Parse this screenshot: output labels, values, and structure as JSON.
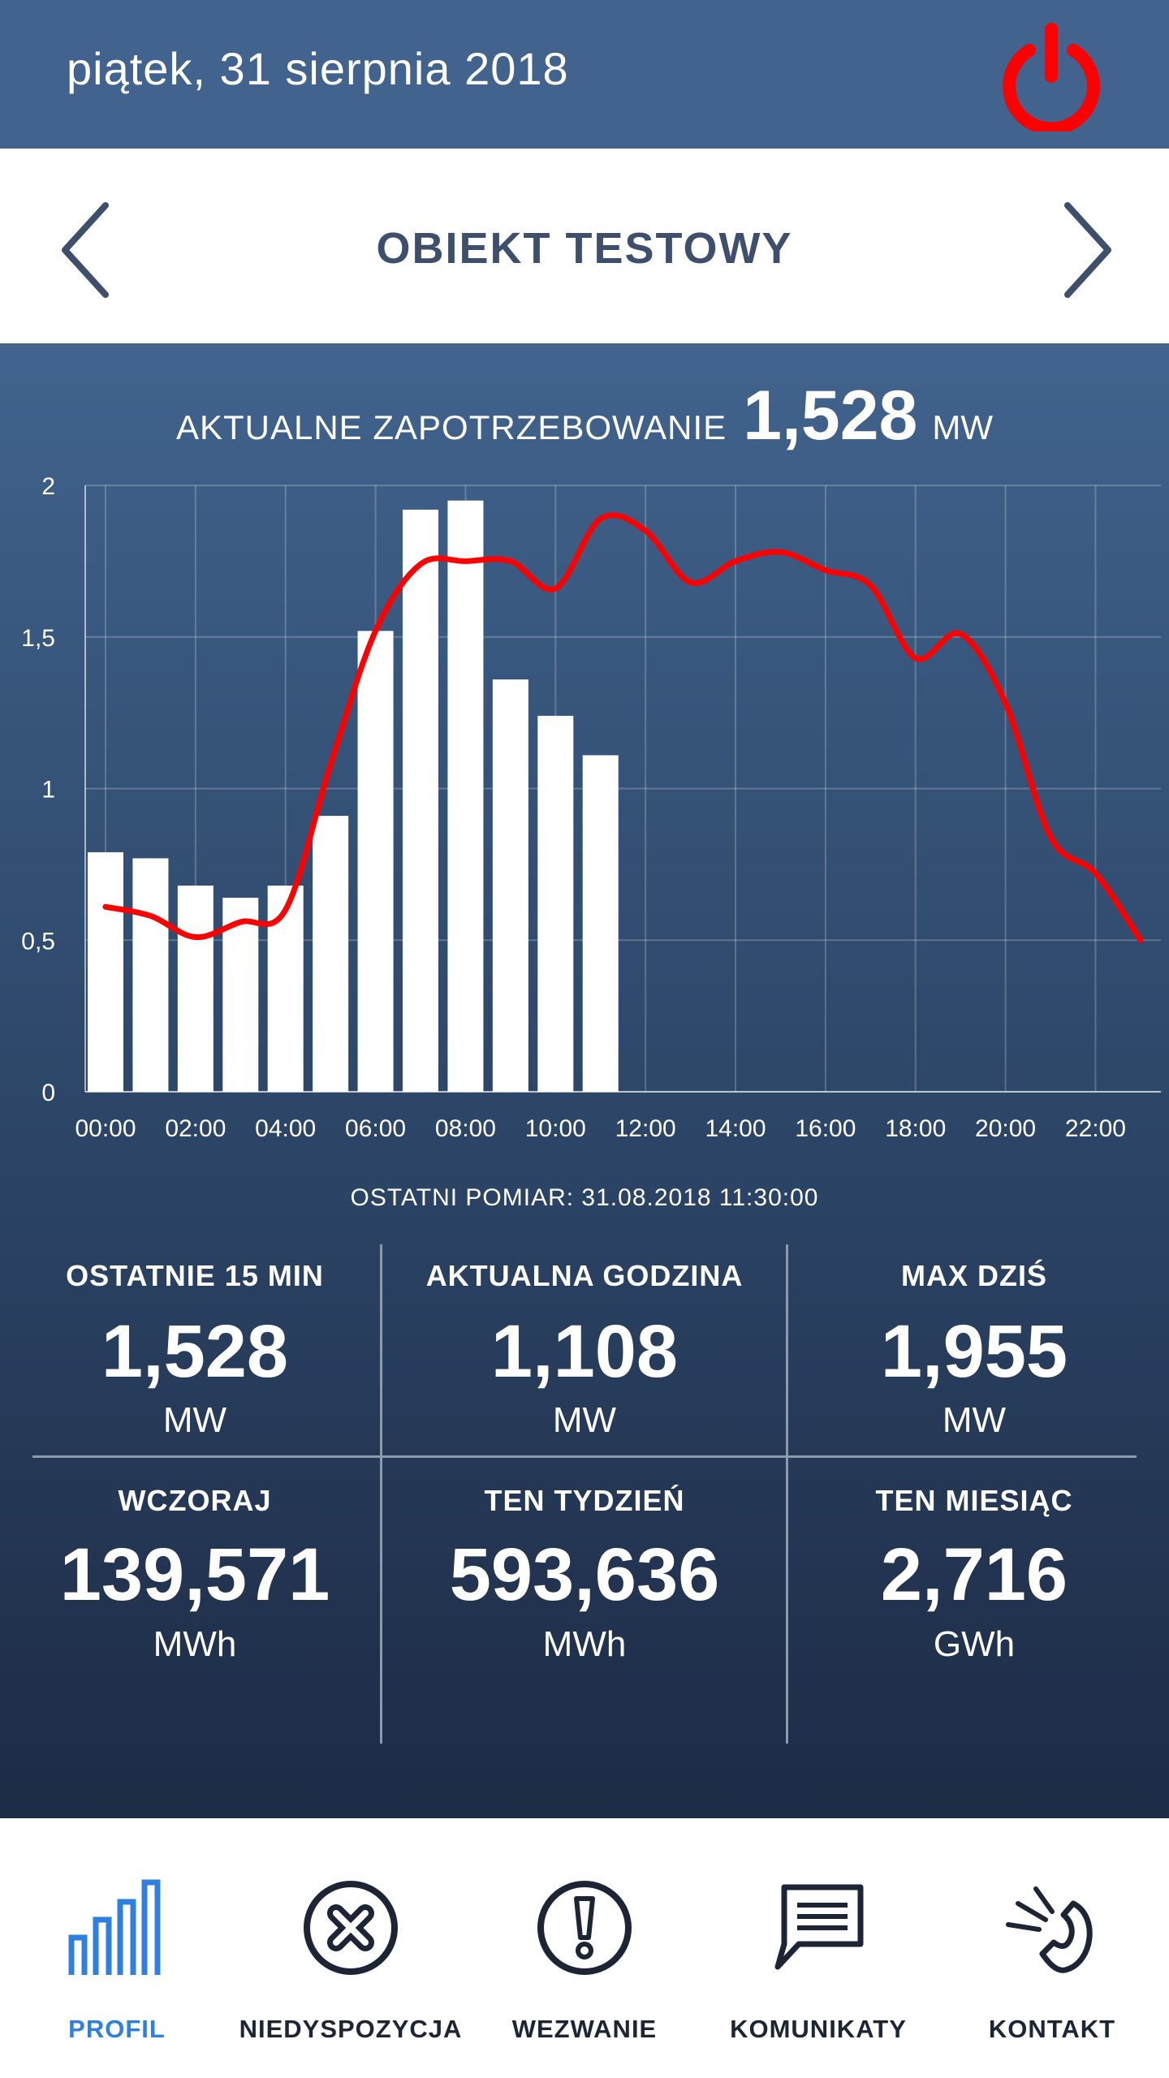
{
  "header": {
    "date": "piątek, 31 sierpnia 2018",
    "power_color": "#ff0000"
  },
  "object": {
    "title": "OBIEKT TESTOWY"
  },
  "demand": {
    "label": "AKTUALNE ZAPOTRZEBOWANIE",
    "value": "1,528",
    "unit": "MW"
  },
  "chart_data": {
    "type": "bar",
    "x": [
      "00:00",
      "01:00",
      "02:00",
      "03:00",
      "04:00",
      "05:00",
      "06:00",
      "07:00",
      "08:00",
      "09:00",
      "10:00",
      "11:00"
    ],
    "x_tick_labels": [
      "00:00",
      "02:00",
      "04:00",
      "06:00",
      "08:00",
      "10:00",
      "12:00",
      "14:00",
      "16:00",
      "18:00",
      "20:00",
      "22:00"
    ],
    "y_tick_labels": [
      "0",
      "0,5",
      "1",
      "1,5",
      "2"
    ],
    "ylim": [
      0,
      2
    ],
    "xlim": [
      0,
      23.5
    ],
    "bar_values": [
      0.79,
      0.77,
      0.68,
      0.64,
      0.68,
      0.91,
      1.52,
      1.92,
      1.95,
      1.36,
      1.24,
      1.11
    ],
    "line": {
      "color": "#ff0000",
      "x": [
        0,
        1,
        2,
        3,
        4,
        5,
        6,
        7,
        8,
        9,
        10,
        11,
        12,
        13,
        14,
        15,
        16,
        17,
        18,
        19,
        20,
        21,
        22,
        23
      ],
      "y": [
        0.61,
        0.58,
        0.51,
        0.56,
        0.6,
        1.08,
        1.52,
        1.74,
        1.75,
        1.75,
        1.66,
        1.89,
        1.85,
        1.68,
        1.75,
        1.78,
        1.72,
        1.67,
        1.43,
        1.51,
        1.28,
        0.84,
        0.72,
        0.5
      ]
    },
    "bar_color": "#ffffff",
    "grid": true
  },
  "last_measurement": "OSTATNI POMIAR: 31.08.2018 11:30:00",
  "stats": [
    {
      "header": "OSTATNIE 15 MIN",
      "value": "1,528",
      "unit": "MW"
    },
    {
      "header": "AKTUALNA GODZINA",
      "value": "1,108",
      "unit": "MW"
    },
    {
      "header": "MAX DZIŚ",
      "value": "1,955",
      "unit": "MW"
    },
    {
      "header": "WCZORAJ",
      "value": "139,571",
      "unit": "MWh"
    },
    {
      "header": "TEN TYDZIEŃ",
      "value": "593,636",
      "unit": "MWh"
    },
    {
      "header": "TEN MIESIĄC",
      "value": "2,716",
      "unit": "GWh"
    }
  ],
  "nav": [
    {
      "label": "PROFIL",
      "icon": "bar-chart-icon",
      "active": true,
      "color": "#2f7fe0"
    },
    {
      "label": "NIEDYSPOZYCJA",
      "icon": "x-circle-icon",
      "active": false
    },
    {
      "label": "WEZWANIE",
      "icon": "exclamation-circle-icon",
      "active": false
    },
    {
      "label": "KOMUNIKATY",
      "icon": "message-icon",
      "active": false
    },
    {
      "label": "KONTAKT",
      "icon": "phone-ringing-icon",
      "active": false
    }
  ]
}
